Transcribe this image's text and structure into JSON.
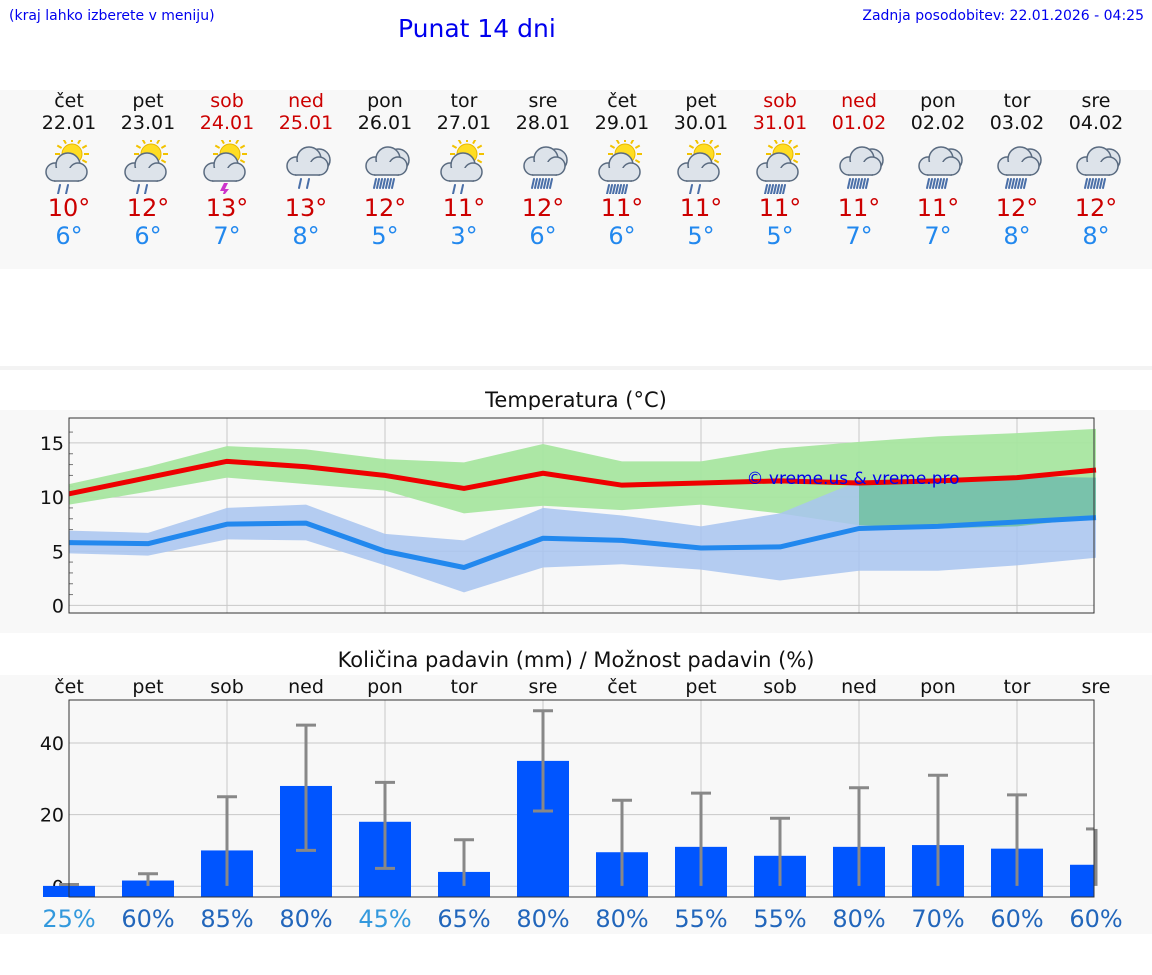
{
  "header": {
    "hint": "(kraj lahko izberete v meniju)",
    "title": "Punat 14 dni",
    "updated": "Zadnja posodobitev: 22.01.2026 - 04:25"
  },
  "colors": {
    "link": "#0000ee",
    "weekend": "#cc0000",
    "max": "#ee0000",
    "min": "#2288ee",
    "bar": "#0055ff"
  },
  "days": [
    {
      "name": "čet",
      "date": "22.01",
      "weekend": false,
      "icon": "sun-cloud-rain-icon",
      "tmax": "10°",
      "tmin": "6°"
    },
    {
      "name": "pet",
      "date": "23.01",
      "weekend": false,
      "icon": "sun-cloud-rain-icon",
      "tmax": "12°",
      "tmin": "6°"
    },
    {
      "name": "sob",
      "date": "24.01",
      "weekend": true,
      "icon": "sun-cloud-thunder-icon",
      "tmax": "13°",
      "tmin": "7°"
    },
    {
      "name": "ned",
      "date": "25.01",
      "weekend": true,
      "icon": "cloud-rain-icon",
      "tmax": "13°",
      "tmin": "8°"
    },
    {
      "name": "pon",
      "date": "26.01",
      "weekend": false,
      "icon": "cloud-heavy-rain-icon",
      "tmax": "12°",
      "tmin": "5°"
    },
    {
      "name": "tor",
      "date": "27.01",
      "weekend": false,
      "icon": "sun-cloud-rain-icon",
      "tmax": "11°",
      "tmin": "3°"
    },
    {
      "name": "sre",
      "date": "28.01",
      "weekend": false,
      "icon": "cloud-heavy-rain-icon",
      "tmax": "12°",
      "tmin": "6°"
    },
    {
      "name": "čet",
      "date": "29.01",
      "weekend": false,
      "icon": "sun-cloud-heavy-rain-icon",
      "tmax": "11°",
      "tmin": "6°"
    },
    {
      "name": "pet",
      "date": "30.01",
      "weekend": false,
      "icon": "sun-cloud-rain-icon",
      "tmax": "11°",
      "tmin": "5°"
    },
    {
      "name": "sob",
      "date": "31.01",
      "weekend": true,
      "icon": "sun-cloud-heavy-rain-icon",
      "tmax": "11°",
      "tmin": "5°"
    },
    {
      "name": "ned",
      "date": "01.02",
      "weekend": true,
      "icon": "cloud-heavy-rain-icon",
      "tmax": "11°",
      "tmin": "7°"
    },
    {
      "name": "pon",
      "date": "02.02",
      "weekend": false,
      "icon": "cloud-heavy-rain-icon",
      "tmax": "11°",
      "tmin": "7°"
    },
    {
      "name": "tor",
      "date": "03.02",
      "weekend": false,
      "icon": "cloud-heavy-rain-icon",
      "tmax": "12°",
      "tmin": "8°"
    },
    {
      "name": "sre",
      "date": "04.02",
      "weekend": false,
      "icon": "cloud-heavy-rain-icon",
      "tmax": "12°",
      "tmin": "8°"
    }
  ],
  "chart_data": [
    {
      "type": "line",
      "title": "Temperatura (°C)",
      "watermark": "© vreme.us & vreme.pro",
      "ylim": [
        -0.7,
        17.3
      ],
      "yticks": [
        0,
        5,
        10,
        15
      ],
      "x": [
        0,
        1,
        2,
        3,
        4,
        5,
        6,
        7,
        8,
        9,
        10,
        11,
        12,
        13
      ],
      "series": [
        {
          "name": "max",
          "color": "#ee0000",
          "values": [
            10.3,
            11.8,
            13.3,
            12.8,
            12.0,
            10.8,
            12.2,
            11.1,
            11.3,
            11.5,
            11.3,
            11.5,
            11.8,
            12.5
          ]
        },
        {
          "name": "min",
          "color": "#2288ee",
          "values": [
            5.8,
            5.7,
            7.5,
            7.6,
            5.0,
            3.5,
            6.2,
            6.0,
            5.3,
            5.4,
            7.1,
            7.3,
            7.7,
            8.1
          ]
        }
      ],
      "bands": [
        {
          "name": "max-range",
          "color": "#a8e6a0",
          "low": [
            9.3,
            10.5,
            11.8,
            11.2,
            10.6,
            8.5,
            9.2,
            8.8,
            9.3,
            8.5,
            7.4,
            7.1,
            7.3,
            8.1
          ],
          "high": [
            11.2,
            12.8,
            14.7,
            14.4,
            13.5,
            13.2,
            14.9,
            13.3,
            13.3,
            14.5,
            15.1,
            15.6,
            15.9,
            16.3
          ]
        },
        {
          "name": "min-range",
          "color": "#a8c4f0",
          "low": [
            4.8,
            4.6,
            6.1,
            6.0,
            3.7,
            1.2,
            3.5,
            3.8,
            3.3,
            2.3,
            3.2,
            3.2,
            3.7,
            4.4
          ],
          "high": [
            6.9,
            6.7,
            9.0,
            9.3,
            6.6,
            6.0,
            9.0,
            8.3,
            7.3,
            8.5,
            11.5,
            11.7,
            11.9,
            11.8
          ]
        }
      ]
    },
    {
      "type": "bar",
      "title": "Količina padavin (mm) / Možnost padavin (%)",
      "categories": [
        "čet",
        "pet",
        "sob",
        "ned",
        "pon",
        "tor",
        "sre",
        "čet",
        "pet",
        "sob",
        "ned",
        "pon",
        "tor",
        "sre"
      ],
      "ylim": [
        -3,
        52
      ],
      "yticks": [
        0,
        20,
        40
      ],
      "values": [
        0.1,
        1.6,
        10.0,
        28.0,
        18.0,
        4.0,
        35.0,
        9.5,
        11.0,
        8.5,
        11.0,
        11.5,
        10.5,
        6.0
      ],
      "error_low": [
        0.1,
        0.1,
        0.1,
        10.0,
        5.0,
        0.1,
        21.0,
        0.1,
        0.1,
        0.1,
        0.1,
        0.1,
        0.1,
        0.1
      ],
      "error_high": [
        0.5,
        3.5,
        25.0,
        45.0,
        29.0,
        13.0,
        49.0,
        24.0,
        26.0,
        19.0,
        27.5,
        31.0,
        25.5,
        16.0
      ],
      "probability": [
        "25%",
        "60%",
        "85%",
        "80%",
        "45%",
        "65%",
        "80%",
        "80%",
        "55%",
        "55%",
        "80%",
        "70%",
        "60%",
        "60%"
      ],
      "probability_colors": [
        "#3399dd",
        "#2266bb",
        "#2266bb",
        "#2266bb",
        "#3399dd",
        "#2266bb",
        "#2266bb",
        "#2266bb",
        "#2266bb",
        "#2266bb",
        "#2266bb",
        "#2266bb",
        "#2266bb",
        "#2266bb"
      ]
    }
  ]
}
